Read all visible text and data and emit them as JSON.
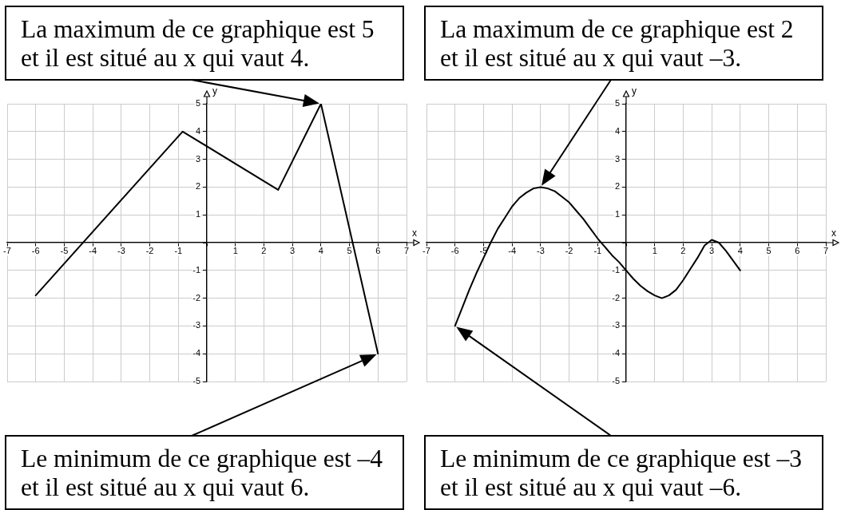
{
  "chart_data": [
    {
      "type": "line",
      "x": [
        -6,
        -0.85,
        2.5,
        4,
        6
      ],
      "values": [
        -1.9,
        4,
        1.9,
        5,
        -4
      ],
      "color": "#000000",
      "xlim": [
        -7,
        7
      ],
      "ylim": [
        -5,
        5
      ],
      "xticks": [
        -7,
        -6,
        -5,
        -4,
        -3,
        -2,
        -1,
        {
          "value": 0,
          "label": null
        },
        1,
        2,
        3,
        4,
        5,
        6,
        7
      ],
      "yticks": [
        -5,
        -4,
        -3,
        -2,
        -1,
        {
          "value": 0,
          "label": null
        },
        1,
        2,
        3,
        4,
        5
      ],
      "xlabel": "x",
      "ylabel": "y",
      "grid": true,
      "annotations": [
        "La maximum de ce graphique est 5 et il est situé au x qui vaut 4.",
        "Le minimum de ce graphique est –4 et il est situé au x qui vaut 6."
      ]
    },
    {
      "type": "line",
      "x": [
        -6,
        -5.75,
        -5.5,
        -5.25,
        -5,
        -4.75,
        -4.5,
        -4.25,
        -4,
        -3.75,
        -3.5,
        -3.25,
        -3,
        -2.75,
        -2.5,
        -2.25,
        -2,
        -1.75,
        -1.5,
        -1.25,
        -1,
        -0.75,
        -0.5,
        -0.25,
        0,
        0.25,
        0.5,
        0.75,
        1,
        1.25,
        1.5,
        1.75,
        2,
        2.25,
        2.5,
        2.75,
        3,
        3.25,
        3.5,
        3.75,
        4
      ],
      "values": [
        -3,
        -2.35,
        -1.7,
        -1.1,
        -0.55,
        0,
        0.5,
        0.9,
        1.3,
        1.6,
        1.8,
        1.95,
        2,
        1.95,
        1.85,
        1.65,
        1.45,
        1.15,
        0.85,
        0.5,
        0.15,
        -0.15,
        -0.45,
        -0.7,
        -1,
        -1.3,
        -1.55,
        -1.75,
        -1.9,
        -2,
        -1.9,
        -1.7,
        -1.35,
        -0.95,
        -0.55,
        -0.1,
        0.1,
        0,
        -0.3,
        -0.65,
        -1
      ],
      "color": "#000000",
      "xlim": [
        -7,
        7
      ],
      "ylim": [
        -5,
        5
      ],
      "xticks": [
        -7,
        -6,
        -5,
        -4,
        -3,
        -2,
        -1,
        {
          "value": 0,
          "label": null
        },
        1,
        2,
        3,
        4,
        5,
        6,
        7
      ],
      "yticks": [
        -5,
        -4,
        -3,
        -2,
        -1,
        {
          "value": 0,
          "label": null
        },
        1,
        2,
        3,
        4,
        5
      ],
      "xlabel": "x",
      "ylabel": "y",
      "grid": true,
      "annotations": [
        "La maximum de ce graphique est 2 et il est situé au x qui vaut –3.",
        "Le minimum de ce graphique est –3 et il est situé au x qui vaut –6."
      ]
    }
  ]
}
